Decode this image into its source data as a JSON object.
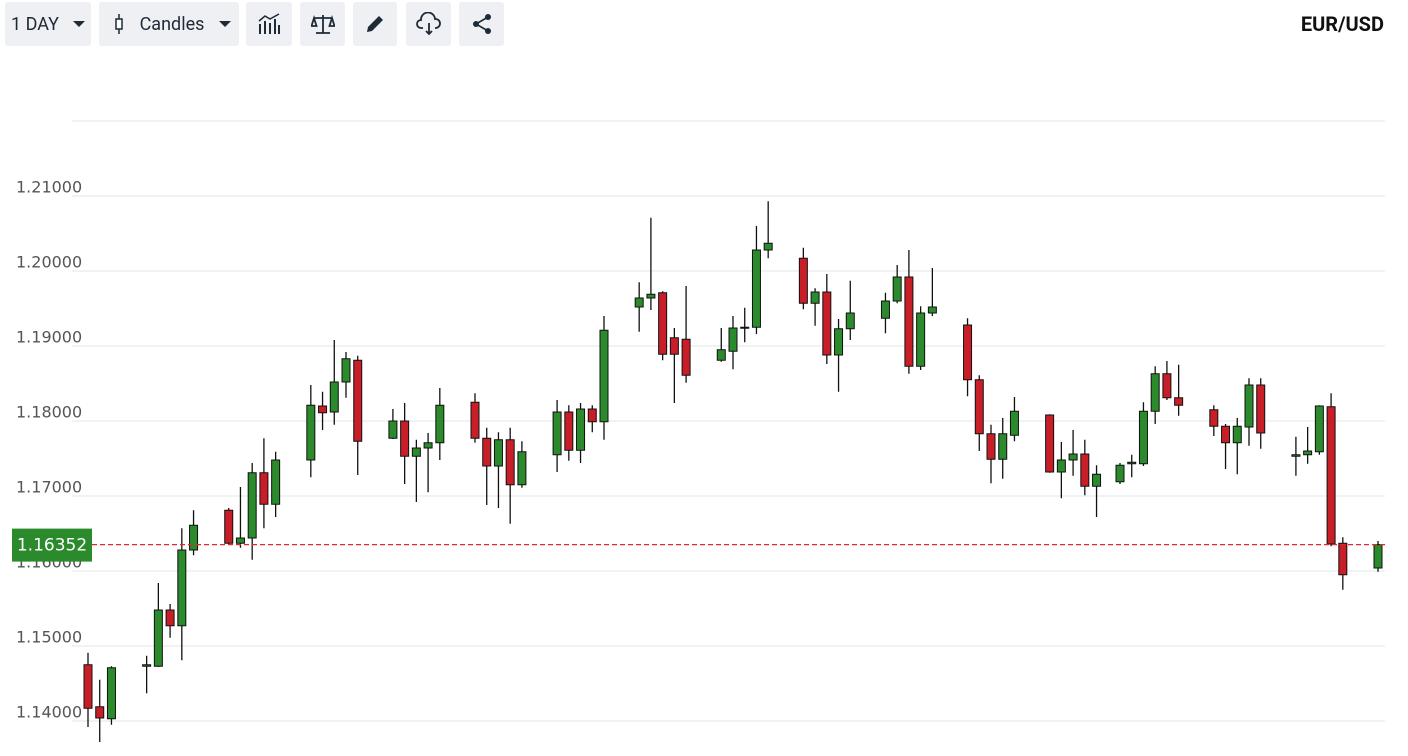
{
  "toolbar": {
    "interval": "1 DAY",
    "chart_type": "Candles"
  },
  "chart_data": {
    "type": "candlestick",
    "title": "EUR/USD",
    "categories": [
      null,
      null,
      null,
      null,
      null,
      null,
      null,
      null,
      null,
      null,
      null,
      null,
      null,
      null,
      null,
      null,
      null,
      null,
      null,
      null,
      null,
      null,
      null,
      null,
      null,
      null,
      null,
      null,
      null,
      null,
      null,
      null,
      null,
      null,
      null,
      null,
      null,
      null,
      null,
      null,
      null,
      null,
      null,
      null,
      null,
      null,
      null,
      null,
      null,
      null,
      null,
      null,
      null,
      null,
      null,
      null,
      null,
      null,
      null,
      null,
      null,
      null,
      null,
      null,
      null,
      null,
      null,
      null,
      null,
      null,
      null,
      null,
      null,
      null,
      null,
      null,
      null,
      null,
      null,
      null,
      null,
      null,
      null,
      null,
      null,
      null,
      null,
      null,
      null,
      null,
      null,
      null,
      null,
      null,
      null,
      null,
      null,
      null,
      null,
      null,
      null,
      null,
      null,
      null,
      null,
      null,
      null,
      null,
      null,
      null,
      null
    ],
    "open": [
      1.1475,
      1.1419,
      1.1403,
      null,
      null,
      1.1473,
      1.1473,
      1.1548,
      1.1527,
      1.1628,
      null,
      null,
      1.1681,
      1.1637,
      1.1644,
      1.1731,
      1.1689,
      null,
      null,
      1.1748,
      1.182,
      1.1812,
      1.1852,
      1.1881,
      null,
      null,
      1.1777,
      1.18,
      1.1753,
      1.1764,
      1.1771,
      null,
      null,
      1.1825,
      1.1777,
      1.174,
      1.1775,
      1.1715,
      null,
      null,
      1.1755,
      1.1812,
      1.1761,
      1.1816,
      1.1799,
      null,
      null,
      1.1952,
      1.1964,
      1.1971,
      1.1911,
      1.1909,
      null,
      null,
      1.1881,
      1.1893,
      1.1924,
      1.1925,
      1.2028,
      null,
      null,
      1.2017,
      1.1957,
      1.1972,
      1.1888,
      1.1923,
      null,
      null,
      1.1937,
      1.196,
      1.1992,
      1.1873,
      1.1944,
      null,
      null,
      1.1928,
      1.1855,
      1.1783,
      1.1749,
      1.1781,
      null,
      null,
      1.1808,
      1.1732,
      1.1748,
      1.1756,
      1.1713,
      null,
      1.1719,
      1.1743,
      1.1743,
      1.1813,
      1.1863,
      1.1831,
      null,
      null,
      1.1815,
      1.1793,
      1.1771,
      1.1792,
      1.1848,
      null,
      null,
      1.1753,
      1.1755,
      1.1759,
      1.1819,
      1.1637,
      null,
      null,
      1.1604
    ],
    "high": [
      1.1491,
      1.1455,
      1.1473,
      null,
      null,
      1.1487,
      1.1584,
      1.1556,
      1.1657,
      1.1681,
      null,
      null,
      1.1684,
      1.1712,
      1.1744,
      1.1777,
      1.1759,
      null,
      null,
      1.1848,
      1.1839,
      1.1908,
      1.1892,
      1.1887,
      null,
      null,
      1.1816,
      1.1824,
      1.1775,
      1.1784,
      1.1844,
      null,
      null,
      1.1837,
      1.1791,
      1.1785,
      1.1791,
      1.1773,
      null,
      null,
      1.1828,
      1.1821,
      1.1824,
      1.1821,
      1.194,
      null,
      null,
      1.1985,
      1.2071,
      1.1973,
      1.1924,
      1.198,
      null,
      null,
      1.1924,
      1.194,
      1.1951,
      1.206,
      1.2093,
      null,
      null,
      1.2031,
      1.1977,
      1.1996,
      1.1936,
      1.1987,
      null,
      null,
      1.1971,
      1.2008,
      1.2028,
      1.1953,
      1.2004,
      null,
      null,
      1.1937,
      1.1861,
      1.1795,
      1.1804,
      1.1832,
      null,
      null,
      1.1809,
      1.1772,
      1.1788,
      1.1775,
      1.1741,
      null,
      1.1744,
      1.1755,
      1.1825,
      1.1873,
      1.188,
      1.1875,
      null,
      null,
      1.1821,
      1.1796,
      1.1804,
      1.1857,
      1.1857,
      null,
      null,
      1.1779,
      1.1792,
      1.1821,
      1.1837,
      1.1645,
      null,
      null,
      1.164
    ],
    "low": [
      1.1392,
      1.1372,
      1.1395,
      null,
      null,
      1.1437,
      1.1472,
      1.1511,
      1.1481,
      1.1621,
      null,
      null,
      1.1635,
      1.1631,
      1.1615,
      1.1657,
      1.1672,
      null,
      null,
      1.1725,
      1.1788,
      1.1795,
      1.1831,
      1.1728,
      null,
      null,
      1.1776,
      1.1716,
      1.1692,
      1.1705,
      1.1748,
      null,
      null,
      1.1771,
      1.1688,
      1.1684,
      1.1663,
      1.1711,
      null,
      null,
      1.1732,
      1.1747,
      1.1744,
      1.1785,
      1.1775,
      null,
      null,
      1.1919,
      1.1948,
      1.1881,
      1.1824,
      1.1851,
      null,
      null,
      1.1879,
      1.1869,
      1.1905,
      1.1916,
      1.2017,
      null,
      null,
      1.1949,
      1.1927,
      1.1876,
      1.1839,
      1.1908,
      null,
      null,
      1.1917,
      1.1957,
      1.1863,
      1.1868,
      1.194,
      null,
      null,
      1.1833,
      1.176,
      1.1717,
      1.1723,
      1.1773,
      null,
      null,
      1.1731,
      1.1697,
      1.1727,
      1.1701,
      1.1672,
      null,
      1.1716,
      1.1725,
      1.174,
      1.1796,
      1.1828,
      1.1807,
      null,
      null,
      1.178,
      1.1736,
      1.1729,
      1.1767,
      1.1763,
      null,
      null,
      1.1727,
      1.1743,
      1.1755,
      1.1633,
      1.1575,
      null,
      null,
      1.1599
    ],
    "close": [
      1.1417,
      1.1404,
      1.1471,
      null,
      null,
      1.1475,
      1.1548,
      1.1527,
      1.1628,
      1.1661,
      null,
      null,
      1.1637,
      1.1644,
      1.1731,
      1.1689,
      1.1748,
      null,
      null,
      1.1821,
      1.1811,
      1.1852,
      1.1883,
      1.1773,
      null,
      null,
      1.18,
      1.1753,
      1.1764,
      1.1771,
      1.1821,
      null,
      null,
      1.1777,
      1.174,
      1.1775,
      1.1715,
      1.1759,
      null,
      null,
      1.1812,
      1.1761,
      1.1816,
      1.1799,
      1.1921,
      null,
      null,
      1.1964,
      1.1969,
      1.1889,
      1.1889,
      1.1861,
      null,
      null,
      1.1895,
      1.1924,
      1.1925,
      1.2028,
      1.2037,
      null,
      null,
      1.1957,
      1.1972,
      1.1888,
      1.1923,
      1.1944,
      null,
      null,
      1.196,
      1.1992,
      1.1873,
      1.1944,
      1.1952,
      null,
      null,
      1.1855,
      1.1783,
      1.1749,
      1.1783,
      1.1813,
      null,
      null,
      1.1732,
      1.1748,
      1.1756,
      1.1713,
      1.1729,
      null,
      1.1741,
      1.1745,
      1.1813,
      1.1863,
      1.1831,
      1.1821,
      null,
      null,
      1.1793,
      1.1771,
      1.1793,
      1.1848,
      1.1784,
      null,
      null,
      1.1755,
      1.176,
      1.182,
      1.1636,
      1.1595,
      null,
      null,
      1.16352
    ],
    "up_color": "#2b8a2b",
    "down_color": "#c81e28",
    "last_price_color": "#e0282e",
    "ylim": [
      1.136,
      1.22
    ],
    "yticks": [
      {
        "value": 1.14,
        "label": "1.14000"
      },
      {
        "value": 1.15,
        "label": "1.15000"
      },
      {
        "value": 1.16,
        "label": "1.16000"
      },
      {
        "value": 1.17,
        "label": "1.17000"
      },
      {
        "value": 1.18,
        "label": "1.18000"
      },
      {
        "value": 1.19,
        "label": "1.19000"
      },
      {
        "value": 1.2,
        "label": "1.20000"
      },
      {
        "value": 1.21,
        "label": "1.21000"
      },
      {
        "value": 1.22,
        "label": ""
      }
    ],
    "grid": true
  }
}
